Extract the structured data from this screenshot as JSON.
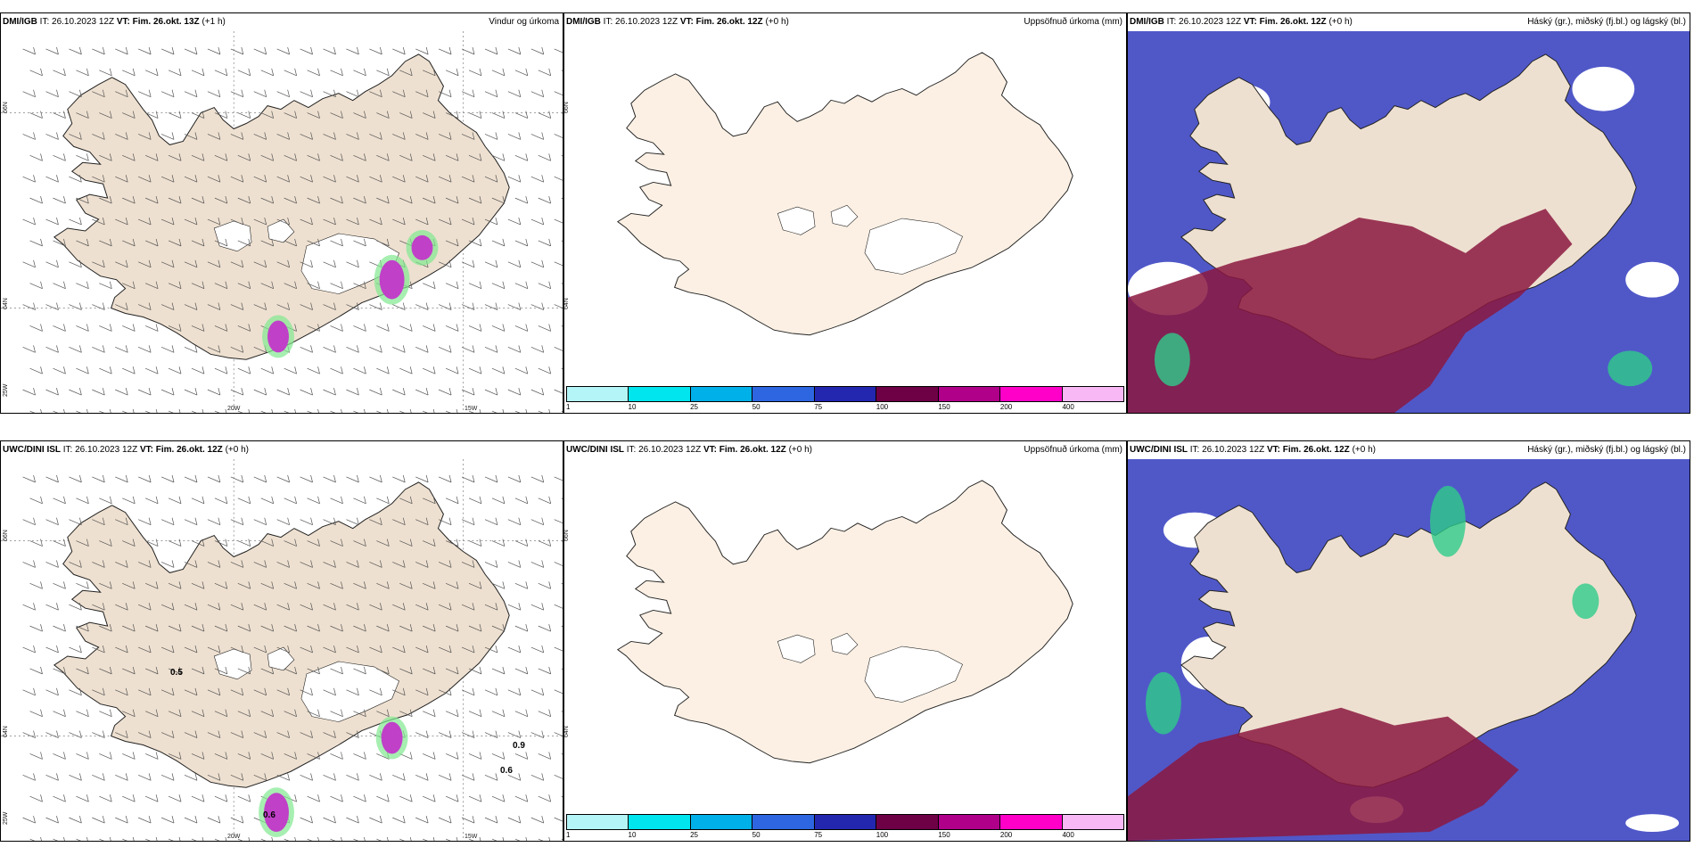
{
  "panels": [
    {
      "id": "top-left",
      "model": "DMI/IGB",
      "it_prefix": "IT:",
      "it": "26.10.2023 12Z",
      "vt_prefix": "VT:",
      "vt": "Fim. 26.okt. 13Z",
      "lead": "(+1 h)",
      "variable": "Vindur og úrkoma",
      "lat_labels": [
        "66N",
        "64N",
        "25W"
      ],
      "lon_labels": [
        "20W",
        "15W"
      ],
      "value_labels": []
    },
    {
      "id": "top-middle",
      "model": "DMI/IGB",
      "it_prefix": "IT:",
      "it": "26.10.2023 12Z",
      "vt_prefix": "VT:",
      "vt": "Fim. 26.okt. 12Z",
      "lead": "(+0 h)",
      "variable": "Uppsöfnuð úrkoma (mm)",
      "lat_labels": [
        "66N",
        "64N"
      ],
      "lon_labels": [],
      "value_labels": []
    },
    {
      "id": "top-right",
      "model": "DMI/IGB",
      "it_prefix": "IT:",
      "it": "26.10.2023 12Z",
      "vt_prefix": "VT:",
      "vt": "Fim. 26.okt. 12Z",
      "lead": "(+0 h)",
      "variable": "Háský (gr.), miðský (fj.bl.) og lágský (bl.)",
      "lat_labels": [],
      "lon_labels": [],
      "value_labels": []
    },
    {
      "id": "bottom-left",
      "model": "UWC/DINI ISL",
      "it_prefix": "IT:",
      "it": "26.10.2023 12Z",
      "vt_prefix": "VT:",
      "vt": "Fim. 26.okt. 12Z",
      "lead": "(+0 h)",
      "variable": "",
      "lat_labels": [
        "66N",
        "64N",
        "25W"
      ],
      "lon_labels": [
        "20W",
        "15W"
      ],
      "value_labels": [
        "0.5",
        "0.9",
        "0.6",
        "0.6"
      ]
    },
    {
      "id": "bottom-middle",
      "model": "UWC/DINI ISL",
      "it_prefix": "IT:",
      "it": "26.10.2023 12Z",
      "vt_prefix": "VT:",
      "vt": "Fim. 26.okt. 12Z",
      "lead": "(+0 h)",
      "variable": "Uppsöfnuð úrkoma (mm)",
      "lat_labels": [
        "66N",
        "64N"
      ],
      "lon_labels": [],
      "value_labels": []
    },
    {
      "id": "bottom-right",
      "model": "UWC/DINI ISL",
      "it_prefix": "IT:",
      "it": "26.10.2023 12Z",
      "vt_prefix": "VT:",
      "vt": "Fim. 26.okt. 12Z",
      "lead": "(+0 h)",
      "variable": "Háský (gr.), miðský (fj.bl.) og lágský (bl.)",
      "lat_labels": [],
      "lon_labels": [],
      "value_labels": []
    }
  ],
  "legend": {
    "ticks": [
      "1",
      "10",
      "25",
      "50",
      "75",
      "100",
      "150",
      "200",
      "400"
    ],
    "colors": [
      "#b4f5f7",
      "#00e5ee",
      "#00b0e8",
      "#2d66e0",
      "#2327b0",
      "#6e0046",
      "#b0008a",
      "#ff00c8",
      "#f8b8f5"
    ]
  },
  "colors": {
    "land": "#eee0d0",
    "land_light": "#fcf0e4",
    "high_cloud": "#2ecc8a",
    "mid_cloud": "#8b1840",
    "low_cloud": "#5058c8",
    "precip": "#c040c8",
    "precip_light": "#80e890"
  }
}
